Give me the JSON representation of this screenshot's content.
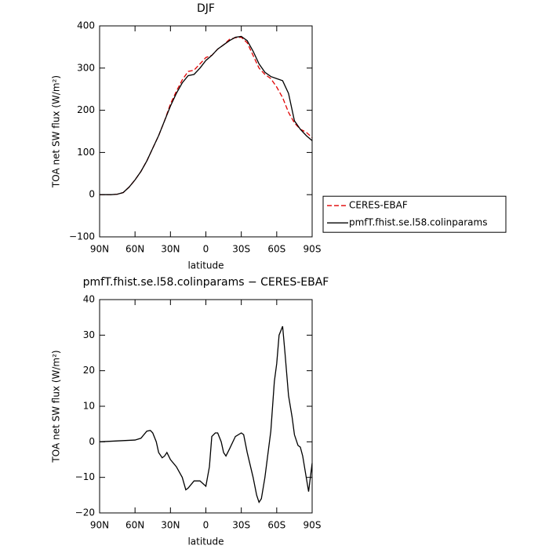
{
  "chart_data": [
    {
      "type": "line",
      "title": "DJF",
      "xlabel": "latitude",
      "ylabel": "TOA net SW flux (W/m²)",
      "x": [
        90,
        85,
        80,
        75,
        70,
        65,
        60,
        55,
        50,
        45,
        40,
        35,
        30,
        25,
        20,
        15,
        10,
        5,
        0,
        -5,
        -10,
        -15,
        -20,
        -25,
        -30,
        -35,
        -40,
        -45,
        -50,
        -55,
        -60,
        -65,
        -70,
        -75,
        -80,
        -85,
        -90
      ],
      "series": [
        {
          "name": "CERES-EBAF",
          "color": "#e00000",
          "dashed": true,
          "values": [
            0,
            0,
            0,
            1,
            5,
            18,
            35,
            55,
            80,
            110,
            140,
            175,
            215,
            245,
            272,
            292,
            295,
            310,
            325,
            330,
            345,
            355,
            368,
            372,
            373,
            360,
            330,
            300,
            285,
            275,
            255,
            230,
            195,
            170,
            155,
            148,
            135
          ]
        },
        {
          "name": "pmfT.fhist.se.l58.colinparams",
          "color": "#000000",
          "dashed": false,
          "values": [
            0,
            0,
            0,
            1,
            5,
            18,
            35,
            55,
            80,
            110,
            140,
            175,
            210,
            240,
            265,
            282,
            285,
            300,
            318,
            330,
            345,
            355,
            365,
            373,
            375,
            365,
            340,
            310,
            290,
            280,
            275,
            270,
            240,
            175,
            155,
            140,
            128
          ]
        }
      ],
      "xlim": [
        90,
        -90
      ],
      "xticks": [
        {
          "value": 90,
          "label": "90N"
        },
        {
          "value": 60,
          "label": "60N"
        },
        {
          "value": 30,
          "label": "30N"
        },
        0,
        {
          "value": -30,
          "label": "30S"
        },
        {
          "value": -60,
          "label": "60S"
        },
        {
          "value": -90,
          "label": "90S"
        }
      ],
      "ylim": [
        -100,
        400
      ],
      "yticks": [
        {
          "value": -100,
          "label": "−100"
        },
        0,
        100,
        200,
        300,
        400
      ],
      "legend": "outside-right"
    },
    {
      "type": "line",
      "title": "pmfT.fhist.se.l58.colinparams − CERES-EBAF",
      "xlabel": "latitude",
      "ylabel": "TOA net SW flux (W/m²)",
      "x": [
        90,
        60,
        55,
        50,
        47,
        45,
        42,
        40,
        37,
        35,
        33,
        30,
        25,
        20,
        17,
        15,
        10,
        5,
        0,
        -3,
        -5,
        -8,
        -10,
        -13,
        -15,
        -17,
        -20,
        -25,
        -30,
        -32,
        -35,
        -40,
        -43,
        -45,
        -47,
        -50,
        -55,
        -58,
        -60,
        -62,
        -65,
        -67,
        -70,
        -73,
        -75,
        -78,
        -80,
        -82,
        -85,
        -87,
        -90
      ],
      "series": [
        {
          "name": "pmfT.fhist.se.l58.colinparams − CERES-EBAF",
          "color": "#000000",
          "dashed": false,
          "values": [
            0,
            0.5,
            1,
            3,
            3.2,
            2.5,
            0,
            -3,
            -4.5,
            -4,
            -3,
            -5,
            -7,
            -10,
            -13.5,
            -13,
            -11,
            -11,
            -12.5,
            -7,
            1.5,
            2.5,
            2.5,
            0,
            -3,
            -4,
            -2,
            1.5,
            2.5,
            2,
            -3,
            -10,
            -15,
            -17,
            -16,
            -10,
            3,
            17,
            22,
            30,
            32.5,
            25,
            13,
            7,
            2,
            -1,
            -1.5,
            -4,
            -10,
            -14,
            -6
          ]
        }
      ],
      "xlim": [
        90,
        -90
      ],
      "xticks": [
        {
          "value": 90,
          "label": "90N"
        },
        {
          "value": 60,
          "label": "60N"
        },
        {
          "value": 30,
          "label": "30N"
        },
        0,
        {
          "value": -30,
          "label": "30S"
        },
        {
          "value": -60,
          "label": "60S"
        },
        {
          "value": -90,
          "label": "90S"
        }
      ],
      "ylim": [
        -20,
        40
      ],
      "yticks": [
        {
          "value": -20,
          "label": "−20"
        },
        {
          "value": -10,
          "label": "−10"
        },
        0,
        10,
        20,
        30,
        40
      ]
    }
  ]
}
